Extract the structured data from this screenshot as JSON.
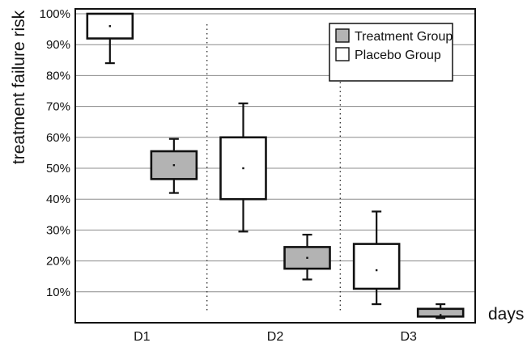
{
  "chart_data": {
    "type": "box",
    "ylabel": "treatment failure risk",
    "xlabel": "days",
    "categories": [
      "D1",
      "D2",
      "D3"
    ],
    "ylim": [
      0,
      100
    ],
    "yticks": [
      "10%",
      "20%",
      "30%",
      "40%",
      "50%",
      "60%",
      "70%",
      "80%",
      "90%",
      "100%"
    ],
    "grid": true,
    "legend_position": "top-right",
    "series": [
      {
        "name": "Treatment Group",
        "fill": "#b3b3b3",
        "boxes": [
          {
            "category": "D1",
            "min": 42,
            "q1": 46.5,
            "median": 51,
            "q3": 55.5,
            "max": 59.5
          },
          {
            "category": "D2",
            "min": 14,
            "q1": 17.5,
            "median": 21,
            "q3": 24.5,
            "max": 28.5
          },
          {
            "category": "D3",
            "min": 1.5,
            "q1": 2,
            "median": 2.5,
            "q3": 4.5,
            "max": 6
          }
        ]
      },
      {
        "name": "Placebo Group",
        "fill": "#ffffff",
        "boxes": [
          {
            "category": "D1",
            "min": 84,
            "q1": 92,
            "median": 96,
            "q3": 100,
            "max": 100
          },
          {
            "category": "D2",
            "min": 29.5,
            "q1": 40,
            "median": 50,
            "q3": 60,
            "max": 71
          },
          {
            "category": "D3",
            "min": 6,
            "q1": 11,
            "median": 17,
            "q3": 25.5,
            "max": 36
          }
        ]
      }
    ]
  }
}
